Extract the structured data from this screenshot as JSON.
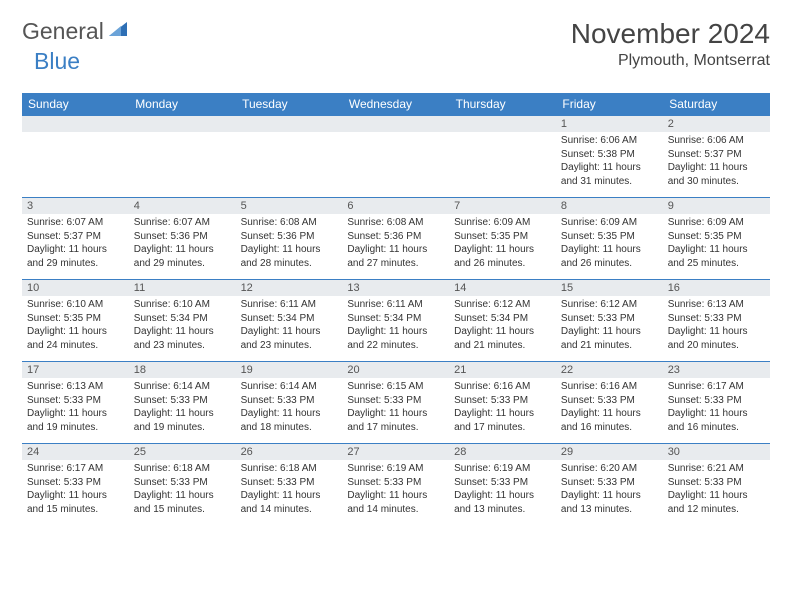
{
  "logo": {
    "word1": "General",
    "word2": "Blue"
  },
  "title": "November 2024",
  "location": "Plymouth, Montserrat",
  "header_bg": "#3b7fc4",
  "daynum_bg": "#e8ebee",
  "border_color": "#3b7fc4",
  "dayNames": [
    "Sunday",
    "Monday",
    "Tuesday",
    "Wednesday",
    "Thursday",
    "Friday",
    "Saturday"
  ],
  "weeks": [
    [
      {
        "n": "",
        "sr": "",
        "ss": "",
        "dl": ""
      },
      {
        "n": "",
        "sr": "",
        "ss": "",
        "dl": ""
      },
      {
        "n": "",
        "sr": "",
        "ss": "",
        "dl": ""
      },
      {
        "n": "",
        "sr": "",
        "ss": "",
        "dl": ""
      },
      {
        "n": "",
        "sr": "",
        "ss": "",
        "dl": ""
      },
      {
        "n": "1",
        "sr": "Sunrise: 6:06 AM",
        "ss": "Sunset: 5:38 PM",
        "dl": "Daylight: 11 hours and 31 minutes."
      },
      {
        "n": "2",
        "sr": "Sunrise: 6:06 AM",
        "ss": "Sunset: 5:37 PM",
        "dl": "Daylight: 11 hours and 30 minutes."
      }
    ],
    [
      {
        "n": "3",
        "sr": "Sunrise: 6:07 AM",
        "ss": "Sunset: 5:37 PM",
        "dl": "Daylight: 11 hours and 29 minutes."
      },
      {
        "n": "4",
        "sr": "Sunrise: 6:07 AM",
        "ss": "Sunset: 5:36 PM",
        "dl": "Daylight: 11 hours and 29 minutes."
      },
      {
        "n": "5",
        "sr": "Sunrise: 6:08 AM",
        "ss": "Sunset: 5:36 PM",
        "dl": "Daylight: 11 hours and 28 minutes."
      },
      {
        "n": "6",
        "sr": "Sunrise: 6:08 AM",
        "ss": "Sunset: 5:36 PM",
        "dl": "Daylight: 11 hours and 27 minutes."
      },
      {
        "n": "7",
        "sr": "Sunrise: 6:09 AM",
        "ss": "Sunset: 5:35 PM",
        "dl": "Daylight: 11 hours and 26 minutes."
      },
      {
        "n": "8",
        "sr": "Sunrise: 6:09 AM",
        "ss": "Sunset: 5:35 PM",
        "dl": "Daylight: 11 hours and 26 minutes."
      },
      {
        "n": "9",
        "sr": "Sunrise: 6:09 AM",
        "ss": "Sunset: 5:35 PM",
        "dl": "Daylight: 11 hours and 25 minutes."
      }
    ],
    [
      {
        "n": "10",
        "sr": "Sunrise: 6:10 AM",
        "ss": "Sunset: 5:35 PM",
        "dl": "Daylight: 11 hours and 24 minutes."
      },
      {
        "n": "11",
        "sr": "Sunrise: 6:10 AM",
        "ss": "Sunset: 5:34 PM",
        "dl": "Daylight: 11 hours and 23 minutes."
      },
      {
        "n": "12",
        "sr": "Sunrise: 6:11 AM",
        "ss": "Sunset: 5:34 PM",
        "dl": "Daylight: 11 hours and 23 minutes."
      },
      {
        "n": "13",
        "sr": "Sunrise: 6:11 AM",
        "ss": "Sunset: 5:34 PM",
        "dl": "Daylight: 11 hours and 22 minutes."
      },
      {
        "n": "14",
        "sr": "Sunrise: 6:12 AM",
        "ss": "Sunset: 5:34 PM",
        "dl": "Daylight: 11 hours and 21 minutes."
      },
      {
        "n": "15",
        "sr": "Sunrise: 6:12 AM",
        "ss": "Sunset: 5:33 PM",
        "dl": "Daylight: 11 hours and 21 minutes."
      },
      {
        "n": "16",
        "sr": "Sunrise: 6:13 AM",
        "ss": "Sunset: 5:33 PM",
        "dl": "Daylight: 11 hours and 20 minutes."
      }
    ],
    [
      {
        "n": "17",
        "sr": "Sunrise: 6:13 AM",
        "ss": "Sunset: 5:33 PM",
        "dl": "Daylight: 11 hours and 19 minutes."
      },
      {
        "n": "18",
        "sr": "Sunrise: 6:14 AM",
        "ss": "Sunset: 5:33 PM",
        "dl": "Daylight: 11 hours and 19 minutes."
      },
      {
        "n": "19",
        "sr": "Sunrise: 6:14 AM",
        "ss": "Sunset: 5:33 PM",
        "dl": "Daylight: 11 hours and 18 minutes."
      },
      {
        "n": "20",
        "sr": "Sunrise: 6:15 AM",
        "ss": "Sunset: 5:33 PM",
        "dl": "Daylight: 11 hours and 17 minutes."
      },
      {
        "n": "21",
        "sr": "Sunrise: 6:16 AM",
        "ss": "Sunset: 5:33 PM",
        "dl": "Daylight: 11 hours and 17 minutes."
      },
      {
        "n": "22",
        "sr": "Sunrise: 6:16 AM",
        "ss": "Sunset: 5:33 PM",
        "dl": "Daylight: 11 hours and 16 minutes."
      },
      {
        "n": "23",
        "sr": "Sunrise: 6:17 AM",
        "ss": "Sunset: 5:33 PM",
        "dl": "Daylight: 11 hours and 16 minutes."
      }
    ],
    [
      {
        "n": "24",
        "sr": "Sunrise: 6:17 AM",
        "ss": "Sunset: 5:33 PM",
        "dl": "Daylight: 11 hours and 15 minutes."
      },
      {
        "n": "25",
        "sr": "Sunrise: 6:18 AM",
        "ss": "Sunset: 5:33 PM",
        "dl": "Daylight: 11 hours and 15 minutes."
      },
      {
        "n": "26",
        "sr": "Sunrise: 6:18 AM",
        "ss": "Sunset: 5:33 PM",
        "dl": "Daylight: 11 hours and 14 minutes."
      },
      {
        "n": "27",
        "sr": "Sunrise: 6:19 AM",
        "ss": "Sunset: 5:33 PM",
        "dl": "Daylight: 11 hours and 14 minutes."
      },
      {
        "n": "28",
        "sr": "Sunrise: 6:19 AM",
        "ss": "Sunset: 5:33 PM",
        "dl": "Daylight: 11 hours and 13 minutes."
      },
      {
        "n": "29",
        "sr": "Sunrise: 6:20 AM",
        "ss": "Sunset: 5:33 PM",
        "dl": "Daylight: 11 hours and 13 minutes."
      },
      {
        "n": "30",
        "sr": "Sunrise: 6:21 AM",
        "ss": "Sunset: 5:33 PM",
        "dl": "Daylight: 11 hours and 12 minutes."
      }
    ]
  ]
}
